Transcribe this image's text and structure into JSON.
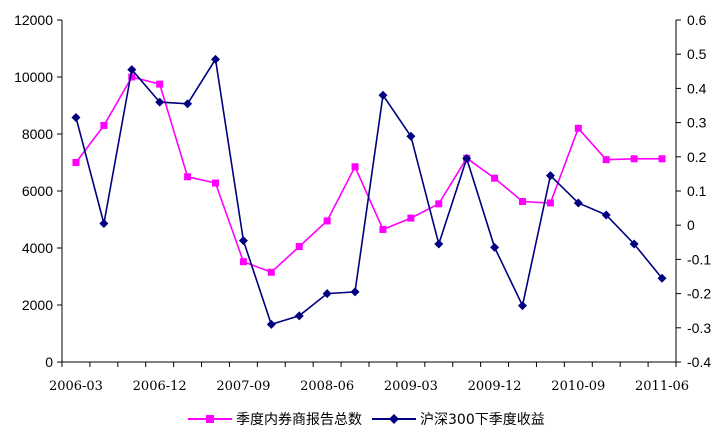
{
  "chart_data": {
    "type": "line",
    "title": "",
    "x": [
      "2006-03",
      "2006-06",
      "2006-09",
      "2006-12",
      "2007-03",
      "2007-06",
      "2007-09",
      "2007-12",
      "2008-03",
      "2008-06",
      "2008-09",
      "2008-12",
      "2009-03",
      "2009-06",
      "2009-09",
      "2009-12",
      "2010-03",
      "2010-06",
      "2010-09",
      "2010-12",
      "2011-03",
      "2011-06"
    ],
    "x_tick_labels": [
      "2006-03",
      "2006-12",
      "2007-09",
      "2008-06",
      "2009-03",
      "2009-12",
      "2010-09",
      "2011-06"
    ],
    "left_axis": {
      "ylim": [
        0,
        12000
      ],
      "ticks": [
        "0",
        "2000",
        "4000",
        "6000",
        "8000",
        "10000",
        "12000"
      ]
    },
    "right_axis": {
      "ylim": [
        -0.4,
        0.6
      ],
      "ticks": [
        "-0.4",
        "-0.3",
        "-0.2",
        "-0.1",
        "0",
        "0.1",
        "0.2",
        "0.3",
        "0.4",
        "0.5",
        "0.6"
      ]
    },
    "legend_position": "bottom",
    "series": [
      {
        "name": "季度内券商报告总数",
        "axis": "left",
        "color": "#ff00ff",
        "marker": "square",
        "values": [
          7000,
          8300,
          10000,
          9750,
          6500,
          6280,
          3520,
          3150,
          4050,
          4950,
          6850,
          4650,
          5050,
          5550,
          7150,
          6450,
          5630,
          5580,
          8200,
          7100,
          7130,
          7130
        ]
      },
      {
        "name": "沪深300下季度收益",
        "axis": "right",
        "color": "#000080",
        "marker": "diamond",
        "values": [
          0.315,
          0.005,
          0.455,
          0.36,
          0.355,
          0.485,
          -0.045,
          -0.29,
          -0.265,
          -0.2,
          -0.195,
          0.38,
          0.26,
          -0.055,
          0.195,
          -0.065,
          -0.235,
          0.145,
          0.065,
          0.03,
          -0.055,
          -0.155
        ]
      }
    ]
  }
}
